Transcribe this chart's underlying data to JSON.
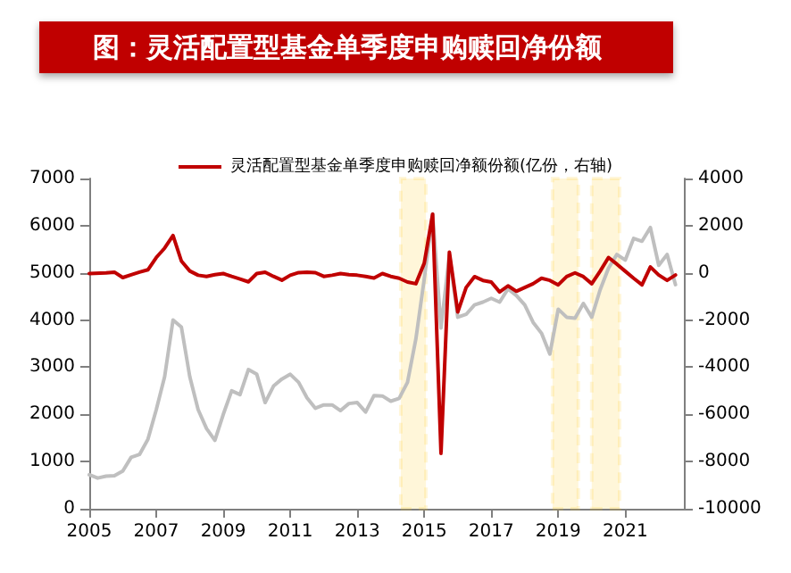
{
  "chart_data": {
    "type": "line",
    "title": "图：灵活配置型基金单季度申购赎回净份额",
    "xlim": [
      2005,
      2022.75
    ],
    "xticks": [
      2005,
      2007,
      2009,
      2011,
      2013,
      2015,
      2017,
      2019,
      2021
    ],
    "ylim": [
      0,
      7000
    ],
    "yticks": [
      0,
      1000,
      2000,
      3000,
      4000,
      5000,
      6000,
      7000
    ],
    "y2lim": [
      -10000,
      4000
    ],
    "y2ticks": [
      -10000,
      -8000,
      -6000,
      -4000,
      -2000,
      0,
      2000,
      4000
    ],
    "grid": false,
    "legend": "top",
    "marker": "none",
    "line_style": "solid",
    "bands": [
      {
        "axis": "x",
        "from": 2014.3,
        "to": 2015.05,
        "color": "#ffc000"
      },
      {
        "axis": "x",
        "from": 2018.83,
        "to": 2019.6,
        "color": "#ffc000"
      },
      {
        "axis": "x",
        "from": 2020.0,
        "to": 2020.83,
        "color": "#ffc000"
      }
    ],
    "series": [
      {
        "color": "#bfbfbf",
        "x": [
          2005,
          2005.25,
          2005.5,
          2005.75,
          2006,
          2006.25,
          2006.5,
          2006.75,
          2007,
          2007.25,
          2007.5,
          2007.75,
          2008,
          2008.25,
          2008.5,
          2008.75,
          2009,
          2009.25,
          2009.5,
          2009.75,
          2010,
          2010.25,
          2010.5,
          2010.75,
          2011,
          2011.25,
          2011.5,
          2011.75,
          2012,
          2012.25,
          2012.5,
          2012.75,
          2013,
          2013.25,
          2013.5,
          2013.75,
          2014,
          2014.25,
          2014.5,
          2014.75,
          2015,
          2015.25,
          2015.5,
          2015.75,
          2016,
          2016.25,
          2016.5,
          2016.75,
          2017,
          2017.25,
          2017.5,
          2017.75,
          2018,
          2018.25,
          2018.5,
          2018.75,
          2019,
          2019.25,
          2019.5,
          2019.75,
          2020,
          2020.25,
          2020.5,
          2020.75,
          2021,
          2021.25,
          2021.5,
          2021.75,
          2022,
          2022.25,
          2022.5
        ],
        "values": [
          720,
          650,
          690,
          700,
          800,
          1090,
          1150,
          1470,
          2100,
          2800,
          4000,
          3850,
          2800,
          2100,
          1700,
          1450,
          2000,
          2500,
          2420,
          2950,
          2850,
          2250,
          2600,
          2750,
          2850,
          2680,
          2350,
          2130,
          2200,
          2200,
          2080,
          2230,
          2250,
          2050,
          2400,
          2390,
          2280,
          2340,
          2680,
          3600,
          4870,
          6250,
          3830,
          5380,
          4060,
          4120,
          4320,
          4380,
          4460,
          4380,
          4660,
          4520,
          4320,
          3950,
          3720,
          3280,
          4230,
          4060,
          4040,
          4350,
          4060,
          4640,
          5100,
          5390,
          5270,
          5730,
          5670,
          5960,
          5160,
          5390,
          4750
        ]
      },
      {
        "name": "灵活配置型基金单季度申购赎回净额份额(亿份，右轴)",
        "color": "#c00000",
        "axis": "y2",
        "x": [
          2005,
          2005.5,
          2005.75,
          2006,
          2006.25,
          2006.5,
          2006.75,
          2007,
          2007.25,
          2007.5,
          2007.75,
          2008,
          2008.25,
          2008.5,
          2008.75,
          2009,
          2009.25,
          2009.5,
          2009.75,
          2010,
          2010.25,
          2010.5,
          2010.75,
          2011,
          2011.25,
          2011.5,
          2011.75,
          2012,
          2012.25,
          2012.5,
          2012.75,
          2013,
          2013.25,
          2013.5,
          2013.75,
          2014,
          2014.25,
          2014.5,
          2014.75,
          2015,
          2015.25,
          2015.5,
          2015.75,
          2016,
          2016.25,
          2016.5,
          2016.75,
          2017,
          2017.25,
          2017.5,
          2017.75,
          2018,
          2018.25,
          2018.5,
          2018.75,
          2019,
          2019.25,
          2019.5,
          2019.75,
          2020,
          2020.25,
          2020.5,
          2020.75,
          2021,
          2021.25,
          2021.5,
          2021.75,
          2022,
          2022.25,
          2022.5
        ],
        "values": [
          -30,
          0,
          30,
          -200,
          -80,
          30,
          130,
          650,
          1050,
          1580,
          500,
          80,
          -100,
          -150,
          -80,
          -30,
          -150,
          -260,
          -380,
          -30,
          30,
          -150,
          -310,
          -100,
          10,
          30,
          10,
          -150,
          -100,
          -30,
          -80,
          -100,
          -150,
          -220,
          -30,
          -150,
          -230,
          -390,
          -460,
          410,
          2490,
          -7650,
          880,
          -1660,
          -620,
          -160,
          -320,
          -390,
          -810,
          -550,
          -780,
          -620,
          -460,
          -230,
          -320,
          -510,
          -160,
          0,
          -160,
          -460,
          70,
          650,
          370,
          70,
          -230,
          -510,
          250,
          -90,
          -320,
          -90
        ]
      }
    ]
  }
}
